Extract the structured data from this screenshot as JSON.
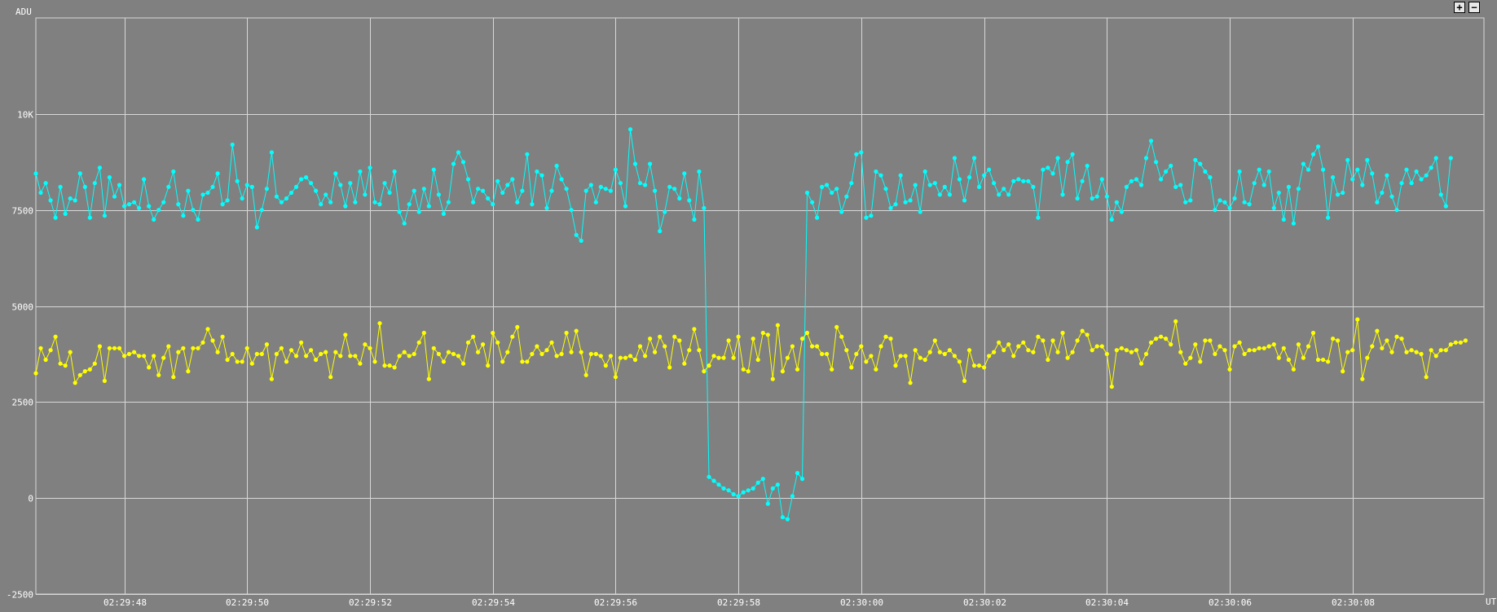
{
  "controls": {
    "zoom_in": "+",
    "zoom_out": "−"
  },
  "chart_data": {
    "type": "line",
    "ylabel": "ADU",
    "xlabel": "UT",
    "ylim": [
      -2500,
      12500
    ],
    "yticks": [
      -2500,
      0,
      2500,
      5000,
      7500,
      10000
    ],
    "ytick_labels": [
      "-2500",
      "0",
      "2500",
      "5000",
      "7500",
      "10K"
    ],
    "xlim": [
      "02:29:46.56",
      "02:30:10.14"
    ],
    "xticks": [
      "02:29:48",
      "02:29:50",
      "02:29:52",
      "02:29:54",
      "02:29:56",
      "02:29:58",
      "02:30:00",
      "02:30:02",
      "02:30:04",
      "02:30:06",
      "02:30:08"
    ],
    "grid": true,
    "sample_interval_s": 0.08,
    "series": [
      {
        "color": "#00ffff",
        "start_time": "02:29:46.56",
        "values": [
          8450,
          7950,
          8200,
          7750,
          7300,
          8100,
          7400,
          7800,
          7750,
          8450,
          8100,
          7300,
          8200,
          8600,
          7350,
          8350,
          7850,
          8150,
          7600,
          7650,
          7700,
          7550,
          8300,
          7600,
          7250,
          7500,
          7700,
          8100,
          8500,
          7650,
          7350,
          8000,
          7500,
          7250,
          7900,
          7950,
          8100,
          8450,
          7650,
          7750,
          9200,
          8250,
          7800,
          8150,
          8100,
          7050,
          7500,
          8050,
          9000,
          7850,
          7700,
          7800,
          7950,
          8100,
          8300,
          8350,
          8200,
          8000,
          7650,
          7900,
          7700,
          8450,
          8150,
          7600,
          8200,
          7700,
          8500,
          7900,
          8600,
          7700,
          7650,
          8200,
          7950,
          8500,
          7450,
          7150,
          7650,
          8000,
          7450,
          8050,
          7600,
          8550,
          7900,
          7400,
          7700,
          8700,
          9000,
          8750,
          8300,
          7700,
          8050,
          8000,
          7800,
          7650,
          8250,
          7950,
          8150,
          8300,
          7700,
          8000,
          8950,
          7650,
          8500,
          8400,
          7550,
          8000,
          8650,
          8300,
          8050,
          7500,
          6850,
          6700,
          8000,
          8150,
          7700,
          8100,
          8050,
          8000,
          8550,
          8200,
          7600,
          9600,
          8700,
          8200,
          8150,
          8700,
          8000,
          6950,
          7450,
          8100,
          8050,
          7800,
          8450,
          7750,
          7250,
          8500,
          7550,
          550,
          450,
          350,
          250,
          200,
          100,
          50,
          150,
          200,
          250,
          400,
          500,
          -150,
          250,
          350,
          -500,
          -550,
          50,
          650,
          500,
          7950,
          7700,
          7300,
          8100,
          8150,
          7950,
          8050,
          7450,
          7850,
          8200,
          8950,
          9000,
          7300,
          7350,
          8500,
          8400,
          8050,
          7550,
          7650,
          8400,
          7700,
          7750,
          8150,
          7450,
          8500,
          8150,
          8200,
          7900,
          8100,
          7900,
          8850,
          8300,
          7750,
          8350,
          8850,
          8100,
          8400,
          8550,
          8200,
          7900,
          8050,
          7900,
          8250,
          8300,
          8250,
          8250,
          8100,
          7300,
          8550,
          8600,
          8450,
          8850,
          7900,
          8750,
          8950,
          7800,
          8250,
          8650,
          7800,
          7850,
          8300,
          7850,
          7250,
          7700,
          7450,
          8100,
          8250,
          8300,
          8150,
          8850,
          9300,
          8750,
          8300,
          8500,
          8650,
          8100,
          8150,
          7700,
          7750,
          8800,
          8700,
          8500,
          8350,
          7500,
          7750,
          7700,
          7550,
          7800,
          8500,
          7700,
          7650,
          8200,
          8550,
          8150,
          8500,
          7550,
          7950,
          7250,
          8100,
          7150,
          8050,
          8700,
          8550,
          8950,
          9150,
          8550,
          7300,
          8350,
          7900,
          7950,
          8800,
          8300,
          8550,
          8150,
          8800,
          8450,
          7700,
          7950,
          8400,
          7850,
          7500,
          8200,
          8550,
          8200,
          8500,
          8300,
          8400,
          8600,
          8850,
          7900,
          7600,
          8850
        ]
      },
      {
        "color": "#ffff00",
        "start_time": "02:29:46.56",
        "values": [
          3250,
          3900,
          3600,
          3850,
          4200,
          3500,
          3450,
          3800,
          3000,
          3200,
          3300,
          3350,
          3500,
          3950,
          3050,
          3900,
          3900,
          3900,
          3700,
          3750,
          3800,
          3700,
          3700,
          3400,
          3700,
          3200,
          3650,
          3950,
          3150,
          3800,
          3900,
          3300,
          3900,
          3900,
          4050,
          4400,
          4100,
          3800,
          4200,
          3600,
          3750,
          3550,
          3550,
          3900,
          3500,
          3750,
          3750,
          4000,
          3100,
          3750,
          3900,
          3550,
          3850,
          3700,
          4050,
          3700,
          3850,
          3600,
          3750,
          3800,
          3150,
          3800,
          3700,
          4250,
          3700,
          3700,
          3500,
          4000,
          3900,
          3550,
          4550,
          3450,
          3450,
          3400,
          3700,
          3800,
          3700,
          3750,
          4050,
          4300,
          3100,
          3900,
          3750,
          3550,
          3800,
          3750,
          3700,
          3500,
          4050,
          4200,
          3800,
          4000,
          3450,
          4300,
          4050,
          3550,
          3800,
          4200,
          4450,
          3550,
          3550,
          3750,
          3950,
          3750,
          3850,
          4050,
          3700,
          3750,
          4300,
          3800,
          4350,
          3800,
          3200,
          3750,
          3750,
          3700,
          3450,
          3700,
          3150,
          3650,
          3650,
          3700,
          3600,
          3950,
          3700,
          4150,
          3800,
          4200,
          3950,
          3400,
          4200,
          4100,
          3500,
          3850,
          4400,
          3850,
          3300,
          3450,
          3700,
          3650,
          3650,
          4100,
          3650,
          4200,
          3350,
          3300,
          4150,
          3600,
          4300,
          4250,
          3100,
          4500,
          3300,
          3650,
          3950,
          3350,
          4150,
          4300,
          3950,
          3950,
          3750,
          3750,
          3350,
          4450,
          4200,
          3850,
          3400,
          3750,
          3950,
          3550,
          3700,
          3350,
          3950,
          4200,
          4150,
          3450,
          3700,
          3700,
          3000,
          3850,
          3650,
          3600,
          3800,
          4100,
          3800,
          3750,
          3850,
          3700,
          3550,
          3050,
          3850,
          3450,
          3450,
          3400,
          3700,
          3800,
          4050,
          3850,
          4000,
          3700,
          3950,
          4050,
          3850,
          3800,
          4200,
          4100,
          3600,
          4100,
          3800,
          4300,
          3650,
          3800,
          4100,
          4350,
          4250,
          3850,
          3950,
          3950,
          3750,
          2900,
          3850,
          3900,
          3850,
          3800,
          3850,
          3500,
          3750,
          4050,
          4150,
          4200,
          4150,
          4000,
          4600,
          3800,
          3500,
          3650,
          4000,
          3550,
          4100,
          4100,
          3750,
          3950,
          3850,
          3350,
          3950,
          4050,
          3750,
          3850,
          3850,
          3900,
          3900,
          3950,
          4000,
          3650,
          3900,
          3600,
          3350,
          4000,
          3650,
          3950,
          4300,
          3600,
          3600,
          3550,
          4150,
          4100,
          3300,
          3800,
          3850,
          4650,
          3100,
          3650,
          3950,
          4350,
          3900,
          4100,
          3800,
          4200,
          4150,
          3800,
          3850,
          3800,
          3750,
          3150,
          3850,
          3700,
          3850,
          3850,
          4000,
          4050,
          4050,
          4100
        ]
      }
    ]
  }
}
